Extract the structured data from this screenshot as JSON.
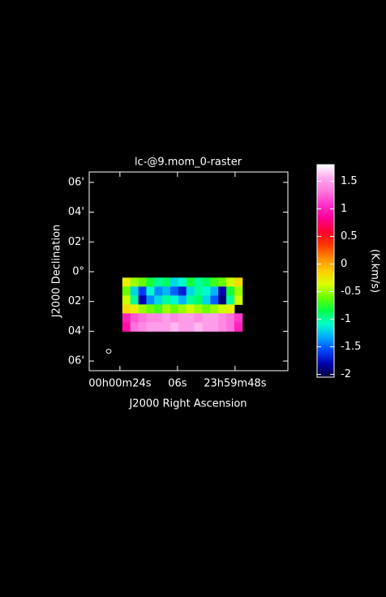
{
  "chart_data": {
    "type": "raster",
    "title": "lc-@9.mom_0-raster",
    "x_label": "J2000 Right Ascension",
    "y_label": "J2000 Declination",
    "colorbar_label": "(K.km/s)",
    "xlim": [
      33.6,
      -28.5
    ],
    "ylim": [
      -6.65,
      6.7
    ],
    "xticks": [
      {
        "value": 24,
        "label": "00h00m24s"
      },
      {
        "value": 6,
        "label": "06s"
      },
      {
        "value": -12,
        "label": "23h59m48s"
      }
    ],
    "yticks": [
      {
        "value": 6,
        "label": "06'"
      },
      {
        "value": 4,
        "label": "04'"
      },
      {
        "value": 2,
        "label": "02'"
      },
      {
        "value": 0,
        "label": "0°"
      },
      {
        "value": -2,
        "label": "02'"
      },
      {
        "value": -4,
        "label": "04'"
      },
      {
        "value": -6,
        "label": "06'"
      }
    ],
    "clim": [
      -2.05,
      1.8
    ],
    "cticks": [
      1.5,
      1,
      0.5,
      0,
      -0.5,
      -1,
      -1.5,
      -2
    ],
    "colormap": [
      "#000033",
      "#0000aa",
      "#0044ff",
      "#00aaff",
      "#00ffcc",
      "#00ff44",
      "#66ff00",
      "#ddff00",
      "#ffcc00",
      "#ff8800",
      "#ff3300",
      "#ff0033",
      "#ff0099",
      "#ff33cc",
      "#ff77dd",
      "#ffaaee",
      "#ffffff"
    ],
    "x": [
      22,
      19.5,
      17,
      14.5,
      12,
      9.5,
      7,
      4.5,
      2,
      -0.5,
      -3,
      -5.5,
      -8,
      -10.5,
      -13
    ],
    "y": [
      -0.7,
      -1.3,
      -1.9,
      -2.5,
      -3.1,
      -3.7
    ],
    "values": [
      [
        -0.3,
        -0.5,
        -0.6,
        -0.8,
        -1.0,
        -0.9,
        -1.2,
        -1.1,
        -0.8,
        -1.0,
        -0.9,
        -0.7,
        -0.6,
        -0.4,
        -0.2
      ],
      [
        -0.6,
        -1.2,
        -1.6,
        -1.1,
        -1.4,
        -1.3,
        -1.5,
        -1.7,
        -1.2,
        -1.0,
        -1.1,
        -1.3,
        -1.8,
        -0.8,
        -0.5
      ],
      [
        -0.4,
        -1.0,
        -1.8,
        -1.4,
        -1.2,
        -1.0,
        -1.1,
        -1.3,
        -1.0,
        -0.9,
        -1.2,
        -1.5,
        -1.9,
        -1.0,
        -0.4
      ],
      [
        -0.2,
        -0.3,
        -0.5,
        -0.6,
        -0.7,
        -0.5,
        -0.6,
        -0.5,
        -0.4,
        -0.5,
        -0.6,
        -0.5,
        -0.4,
        -0.3,
        null
      ],
      [
        1.0,
        1.2,
        1.3,
        1.4,
        1.4,
        1.5,
        1.4,
        1.5,
        1.5,
        1.4,
        1.5,
        1.5,
        1.4,
        1.3,
        1.1
      ],
      [
        0.9,
        1.3,
        1.4,
        1.5,
        1.5,
        1.5,
        1.6,
        1.5,
        1.5,
        1.6,
        1.5,
        1.5,
        1.4,
        1.3,
        1.0
      ]
    ]
  }
}
